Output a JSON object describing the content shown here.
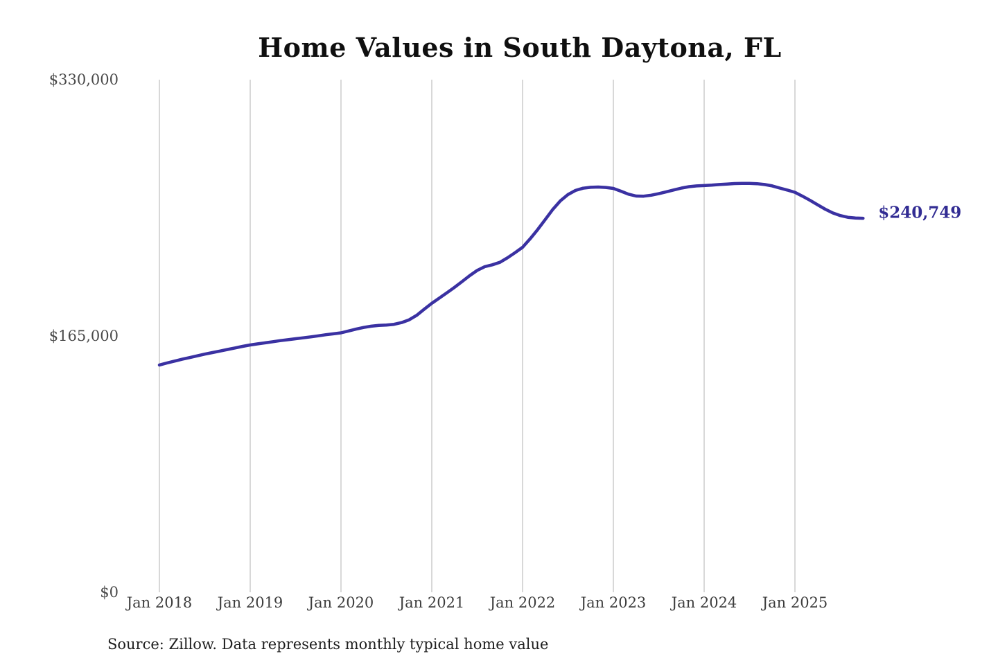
{
  "source_note": "Source: Zillow. Data represents monthly typical home value",
  "colors": {
    "background": "#ffffff",
    "line": "#3a31a2",
    "grid": "#cccccc",
    "title_text": "#0f0f0f",
    "y_axis_text": "#4a4a4a",
    "x_axis_text": "#3d3d3d",
    "value_label": "#322c93",
    "source_text": "#1f1f1f"
  },
  "chart_data": {
    "type": "line",
    "title": "Home Values in South Daytona, FL",
    "xlabel": "",
    "ylabel": "",
    "ylim": [
      0,
      330000
    ],
    "grid": "vertical-only",
    "legend": "none",
    "y_ticks": [
      {
        "value": 330000,
        "label": "$330,000"
      },
      {
        "value": 165000,
        "label": "$165,000"
      },
      {
        "value": 0,
        "label": "$0"
      }
    ],
    "x_tick_labels": [
      "Jan 2018",
      "Jan 2019",
      "Jan 2020",
      "Jan 2021",
      "Jan 2022",
      "Jan 2023",
      "Jan 2024",
      "Jan 2025"
    ],
    "last_value_label": "$240,749",
    "last_value": 240749,
    "series": [
      {
        "name": "Monthly typical home value",
        "start_month": "Jan 2018",
        "frequency": "monthly",
        "values": [
          146300,
          147600,
          148800,
          150000,
          151100,
          152200,
          153300,
          154300,
          155300,
          156300,
          157300,
          158300,
          159200,
          159900,
          160600,
          161300,
          162000,
          162600,
          163200,
          163800,
          164400,
          165100,
          165800,
          166400,
          167000,
          168200,
          169400,
          170500,
          171300,
          171800,
          172000,
          172500,
          173600,
          175400,
          178300,
          182200,
          186000,
          189400,
          192800,
          196300,
          200000,
          203800,
          207200,
          209600,
          210800,
          212400,
          215300,
          218600,
          222100,
          227500,
          233500,
          240000,
          246500,
          252000,
          256000,
          258700,
          260100,
          260700,
          260900,
          260600,
          260000,
          258200,
          256300,
          255100,
          255000,
          255600,
          256600,
          257800,
          259000,
          260200,
          261100,
          261600,
          261800,
          262100,
          262500,
          262800,
          263100,
          263200,
          263200,
          263000,
          262500,
          261600,
          260200,
          258900,
          257500,
          255000,
          252300,
          249400,
          246600,
          244200,
          242500,
          241400,
          240900,
          240749
        ]
      }
    ]
  }
}
